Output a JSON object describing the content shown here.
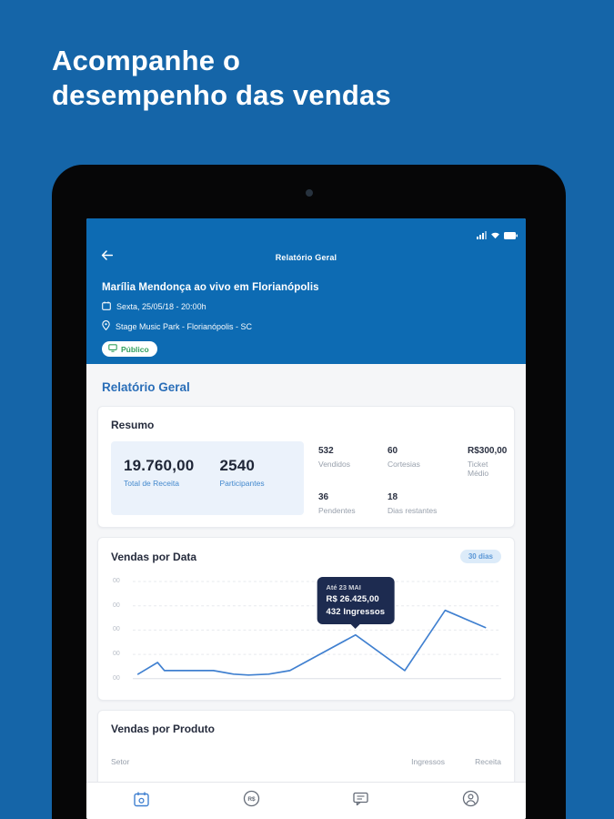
{
  "page": {
    "heading_line1": "Acompanhe o",
    "heading_line2": "desempenho das vendas"
  },
  "colors": {
    "background": "#1565a8",
    "app_header": "#0d6bb3",
    "accent_blue": "#4080d0",
    "section_blue": "#2a6eb8",
    "badge_green": "#33a05f",
    "tooltip_bg": "#1d2b50"
  },
  "app_header": {
    "title": "Relatório Geral",
    "event_title": "Marília Mendonça ao vivo em Florianópolis",
    "event_date": "Sexta, 25/05/18 - 20:00h",
    "event_venue": "Stage Music Park - Florianópolis - SC",
    "badge_label": "Público"
  },
  "report": {
    "section_title": "Relatório Geral"
  },
  "resumo": {
    "title": "Resumo",
    "highlight": [
      {
        "value": "19.760,00",
        "label": "Total de Receita"
      },
      {
        "value": "2540",
        "label": "Participantes"
      }
    ],
    "stats": [
      {
        "value": "532",
        "label": "Vendidos"
      },
      {
        "value": "60",
        "label": "Cortesias"
      },
      {
        "value": "R$300,00",
        "label": "Ticket Médio"
      },
      {
        "value": "36",
        "label": "Pendentes"
      },
      {
        "value": "18",
        "label": "Dias restantes"
      }
    ]
  },
  "vendas_por_data": {
    "title": "Vendas por Data",
    "filter_label": "30 dias",
    "tooltip": {
      "date": "Até 23 MAI",
      "revenue": "R$ 26.425,00",
      "tickets": "432 Ingressos"
    }
  },
  "chart_data": {
    "type": "line",
    "title": "Vendas por Data",
    "xlabel": "",
    "ylabel": "",
    "x_pct": [
      0,
      5.6,
      7.6,
      21.7,
      27.5,
      31.8,
      37.6,
      43.7,
      62.6,
      76.8,
      88.4,
      100
    ],
    "values": [
      45,
      160,
      80,
      80,
      45,
      36,
      45,
      80,
      432,
      80,
      675,
      505
    ],
    "ylim": [
      0,
      960
    ],
    "ytick_labels": [
      "00",
      "00",
      "00",
      "00",
      "00"
    ],
    "grid": "dashed-horizontal",
    "legend": "none",
    "line_color": "#4080d0",
    "tooltip_point_index": 8,
    "annotations": [
      "Até 23 MAI",
      "R$ 26.425,00",
      "432 Ingressos"
    ]
  },
  "vendas_por_produto": {
    "title": "Vendas por Produto",
    "columns": {
      "setor": "Setor",
      "ingressos": "Ingressos",
      "receita": "Receita"
    }
  },
  "bottom_nav": [
    {
      "name": "events-calendar",
      "active": true
    },
    {
      "name": "finance",
      "active": false,
      "glyph": "R$"
    },
    {
      "name": "messages",
      "active": false
    },
    {
      "name": "profile",
      "active": false
    }
  ]
}
